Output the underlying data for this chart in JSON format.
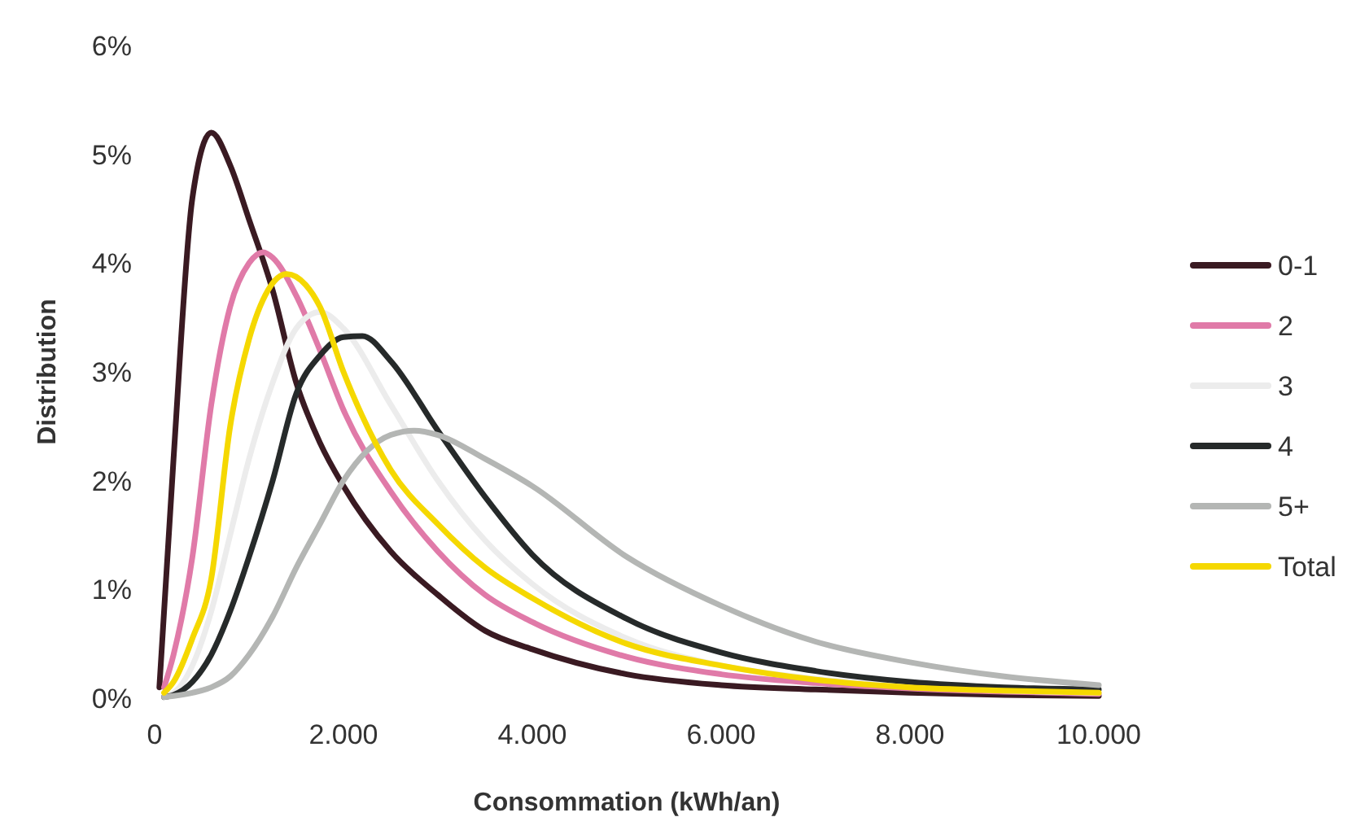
{
  "chart_data": {
    "type": "line",
    "xlabel": "Consommation (kWh/an)",
    "ylabel": "Distribution",
    "xlim": [
      0,
      10000
    ],
    "xticks": [
      0,
      {
        "value": 2000,
        "label": "2.000"
      },
      {
        "value": 4000,
        "label": "4.000"
      },
      {
        "value": 6000,
        "label": "6.000"
      },
      {
        "value": 8000,
        "label": "8.000"
      },
      {
        "value": 10000,
        "label": "10.000"
      }
    ],
    "ylim": [
      0,
      6
    ],
    "yticks": [
      {
        "value": 0,
        "label": "0%"
      },
      {
        "value": 1,
        "label": "1%"
      },
      {
        "value": 2,
        "label": "2%"
      },
      {
        "value": 3,
        "label": "3%"
      },
      {
        "value": 4,
        "label": "4%"
      },
      {
        "value": 5,
        "label": "5%"
      },
      {
        "value": 6,
        "label": "6%"
      }
    ],
    "grid": false,
    "legend": "right",
    "marker": "none",
    "line_style": "solid",
    "series": [
      {
        "name": "0-1",
        "color": "#3a1a22",
        "x": [
          50,
          200,
          400,
          600,
          800,
          1000,
          1250,
          1500,
          1750,
          2000,
          2500,
          3000,
          3500,
          4000,
          5000,
          6000,
          7000,
          8000,
          9000,
          10000
        ],
        "values": [
          0.1,
          2.2,
          4.6,
          5.2,
          4.9,
          4.4,
          3.75,
          2.9,
          2.35,
          1.95,
          1.35,
          0.95,
          0.62,
          0.45,
          0.22,
          0.12,
          0.08,
          0.05,
          0.03,
          0.02
        ]
      },
      {
        "name": "2",
        "color": "#e07aa8",
        "x": [
          100,
          200,
          400,
          600,
          800,
          1000,
          1150,
          1250,
          1500,
          1750,
          2000,
          2500,
          3000,
          3500,
          4000,
          5000,
          6000,
          7000,
          8000,
          9000,
          10000
        ],
        "values": [
          0.1,
          0.4,
          1.3,
          2.7,
          3.6,
          4.0,
          4.1,
          4.05,
          3.7,
          3.2,
          2.65,
          1.9,
          1.35,
          0.95,
          0.7,
          0.38,
          0.22,
          0.14,
          0.09,
          0.06,
          0.04
        ]
      },
      {
        "name": "3",
        "color": "#ececec",
        "x": [
          100,
          200,
          400,
          600,
          800,
          1000,
          1250,
          1500,
          1750,
          2000,
          2500,
          3000,
          3500,
          4000,
          5000,
          6000,
          7000,
          8000,
          9000,
          10000
        ],
        "values": [
          0.02,
          0.05,
          0.3,
          0.8,
          1.5,
          2.2,
          2.9,
          3.4,
          3.55,
          3.4,
          2.7,
          2.0,
          1.45,
          1.05,
          0.55,
          0.3,
          0.18,
          0.11,
          0.07,
          0.05
        ]
      },
      {
        "name": "4",
        "color": "#262a2a",
        "x": [
          100,
          200,
          400,
          600,
          800,
          1000,
          1250,
          1500,
          1750,
          2000,
          2200,
          2500,
          3000,
          3500,
          4000,
          5000,
          6000,
          7000,
          8000,
          9000,
          10000
        ],
        "values": [
          0.01,
          0.03,
          0.15,
          0.4,
          0.8,
          1.3,
          2.0,
          2.8,
          3.15,
          3.32,
          3.33,
          3.1,
          2.46,
          1.85,
          1.32,
          0.73,
          0.42,
          0.25,
          0.15,
          0.1,
          0.08
        ]
      },
      {
        "name": "5+",
        "color": "#b4b6b4",
        "x": [
          100,
          200,
          400,
          600,
          800,
          1000,
          1250,
          1500,
          1750,
          2000,
          2500,
          2750,
          3000,
          3500,
          4000,
          5000,
          6000,
          7000,
          8000,
          9000,
          10000
        ],
        "values": [
          0.01,
          0.02,
          0.05,
          0.1,
          0.2,
          0.4,
          0.75,
          1.2,
          1.6,
          2.0,
          2.42,
          2.46,
          2.42,
          2.2,
          1.95,
          1.3,
          0.85,
          0.52,
          0.33,
          0.2,
          0.12
        ]
      },
      {
        "name": "Total",
        "color": "#f5d800",
        "x": [
          100,
          200,
          400,
          600,
          800,
          1000,
          1200,
          1400,
          1600,
          1750,
          2000,
          2500,
          3000,
          3500,
          4000,
          5000,
          6000,
          7000,
          8000,
          9000,
          10000
        ],
        "values": [
          0.05,
          0.15,
          0.55,
          1.1,
          2.5,
          3.3,
          3.75,
          3.9,
          3.8,
          3.6,
          3.0,
          2.1,
          1.6,
          1.2,
          0.92,
          0.5,
          0.3,
          0.17,
          0.1,
          0.07,
          0.05
        ]
      }
    ]
  }
}
